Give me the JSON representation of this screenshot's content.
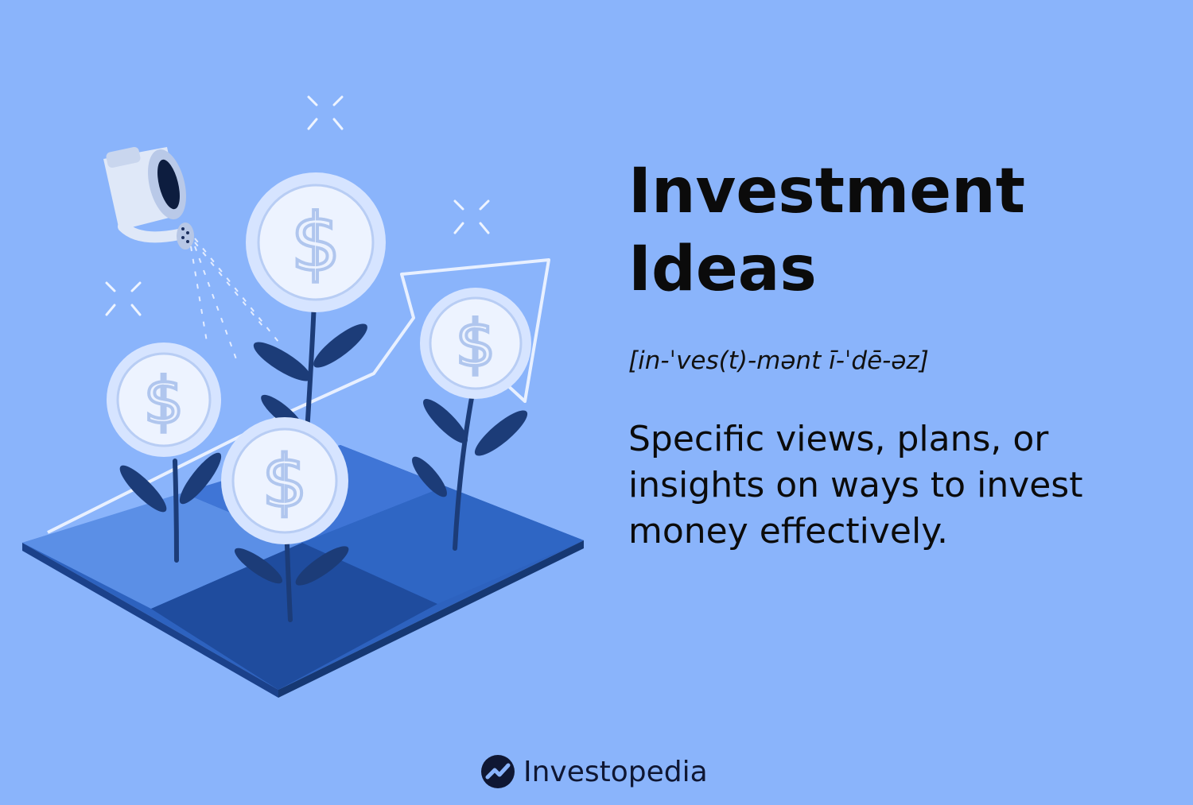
{
  "page": {
    "title_line1": "Investment",
    "title_line2": "Ideas",
    "pronunciation": "[in-ˈves(t)-mənt ī-ˈdē-əz]",
    "definition": "Specific views, plans, or insights on ways to invest money effectively.",
    "brand": "Investopedia"
  },
  "colors": {
    "background": "#8ab4fb",
    "tile_light": "#4f84e0",
    "tile_dark": "#2a5fb8",
    "coin": "#dbe8ff",
    "leaf": "#1c3c78",
    "text": "#0b0b0b"
  },
  "icons": [
    "watering-can-icon",
    "dollar-coin-icon",
    "arrow-up-icon",
    "sparkle-icon",
    "investopedia-logo-icon"
  ]
}
